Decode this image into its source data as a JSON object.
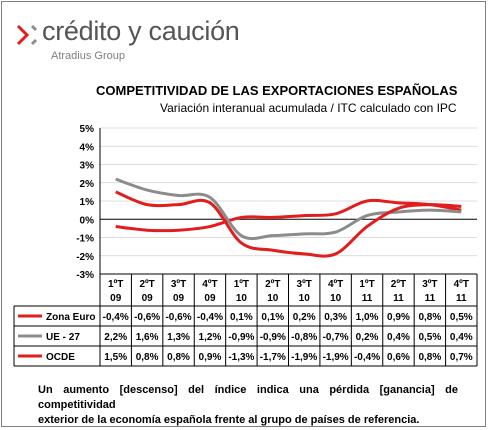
{
  "header": {
    "brand": "crédito y caución",
    "brand_sub": "Atradius Group"
  },
  "chart_data": {
    "type": "line",
    "title": "COMPETITIVIDAD DE LAS EXPORTACIONES ESPAÑOLAS",
    "subtitle": "Variación interanual acumulada  / ITC calculado con IPC",
    "ylim": [
      -3,
      5
    ],
    "yticks": [
      "5%",
      "4%",
      "3%",
      "2%",
      "1%",
      "0%",
      "-1%",
      "-2%",
      "-3%"
    ],
    "categories": [
      [
        "1ºT",
        "09"
      ],
      [
        "2ºT",
        "09"
      ],
      [
        "3ºT",
        "09"
      ],
      [
        "4ºT",
        "09"
      ],
      [
        "1ºT",
        "10"
      ],
      [
        "2ºT",
        "10"
      ],
      [
        "3ºT",
        "10"
      ],
      [
        "4ºT",
        "10"
      ],
      [
        "1ºT",
        "11"
      ],
      [
        "2ºT",
        "11"
      ],
      [
        "3ºT",
        "11"
      ],
      [
        "4ºT",
        "11"
      ]
    ],
    "grid": "horizontal",
    "legend": "table-below",
    "series": [
      {
        "name": "Zona Euro",
        "color": "#e11d1d",
        "values": [
          -0.4,
          -0.6,
          -0.6,
          -0.4,
          0.1,
          0.1,
          0.2,
          0.3,
          1.0,
          0.9,
          0.8,
          0.5
        ],
        "labels": [
          "-0,4%",
          "-0,6%",
          "-0,6%",
          "-0,4%",
          "0,1%",
          "0,1%",
          "0,2%",
          "0,3%",
          "1,0%",
          "0,9%",
          "0,8%",
          "0,5%"
        ]
      },
      {
        "name": "UE - 27",
        "color": "#8c8c8c",
        "values": [
          2.2,
          1.6,
          1.3,
          1.2,
          -0.9,
          -0.9,
          -0.8,
          -0.7,
          0.2,
          0.4,
          0.5,
          0.4
        ],
        "labels": [
          "2,2%",
          "1,6%",
          "1,3%",
          "1,2%",
          "-0,9%",
          "-0,9%",
          "-0,8%",
          "-0,7%",
          "0,2%",
          "0,4%",
          "0,5%",
          "0,4%"
        ]
      },
      {
        "name": "OCDE",
        "color": "#e11d1d",
        "values": [
          1.5,
          0.8,
          0.8,
          0.9,
          -1.3,
          -1.7,
          -1.9,
          -1.9,
          -0.4,
          0.6,
          0.8,
          0.7
        ],
        "labels": [
          "1,5%",
          "0,8%",
          "0,8%",
          "0,9%",
          "-1,3%",
          "-1,7%",
          "-1,9%",
          "-1,9%",
          "-0,4%",
          "0,6%",
          "0,8%",
          "0,7%"
        ]
      }
    ]
  },
  "footnote": [
    "Un aumento [descenso] del índice indica una pérdida [ganancia] de competitividad",
    "exterior de la economía española frente al grupo de países de referencia."
  ]
}
